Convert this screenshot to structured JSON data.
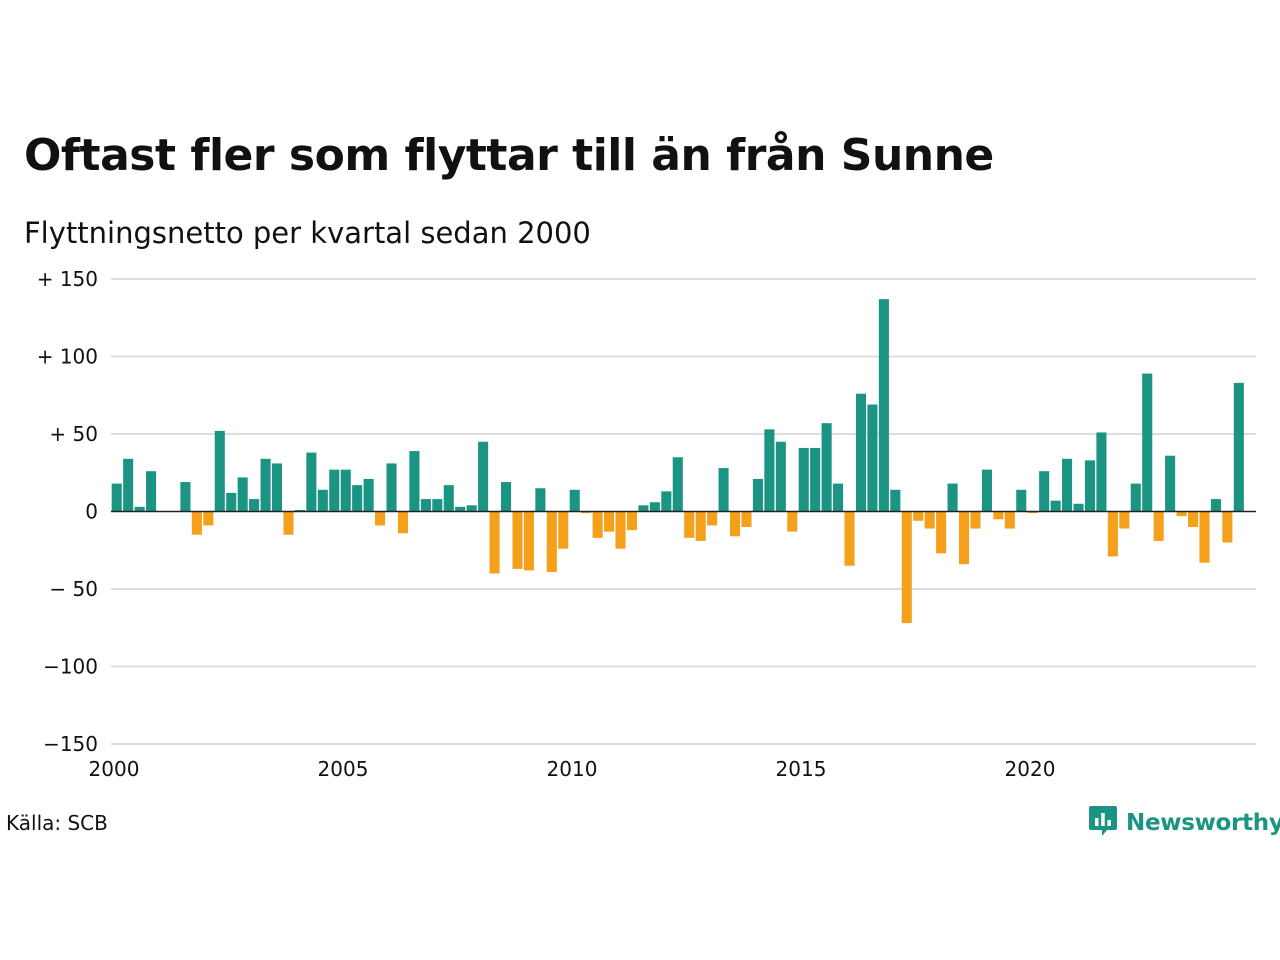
{
  "title": "Oftast fler som flyttar till än från Sunne",
  "subtitle": "Flyttningsnetto per kvartal sedan 2000",
  "source": "Källa: SCB",
  "brand": {
    "name": "Newsworthy",
    "color": "#1b9483",
    "icon": "newsworthy-logo-icon"
  },
  "colors": {
    "positive": "#1b9483",
    "negative": "#f5a01a",
    "grid": "#dddddd",
    "zero_line": "#222222"
  },
  "chart_data": {
    "type": "bar",
    "title": "Oftast fler som flyttar till än från Sunne",
    "subtitle": "Flyttningsnetto per kvartal sedan 2000",
    "xlabel": "",
    "ylabel": "",
    "ylim": [
      -150,
      150
    ],
    "y_ticks": [
      150,
      100,
      50,
      0,
      -50,
      -100,
      -150
    ],
    "y_tick_labels": [
      "+ 150",
      "+ 100",
      "+  50",
      "0",
      "− 50",
      "−100",
      "−150"
    ],
    "x_ticks": [
      2000,
      2005,
      2010,
      2015,
      2020
    ],
    "x_tick_labels": [
      "2000",
      "2005",
      "2010",
      "2015",
      "2020"
    ],
    "x_range": [
      2000,
      2025
    ],
    "grid": true,
    "first_period": "2000 Q1",
    "values": [
      18,
      34,
      3,
      26,
      0,
      0,
      19,
      -15,
      -9,
      52,
      12,
      22,
      8,
      34,
      31,
      -15,
      1,
      38,
      14,
      27,
      27,
      17,
      21,
      -9,
      31,
      -14,
      39,
      8,
      8,
      17,
      3,
      4,
      45,
      -40,
      19,
      -37,
      -38,
      15,
      -39,
      -24,
      14,
      -1,
      -17,
      -13,
      -24,
      -12,
      4,
      6,
      13,
      35,
      -17,
      -19,
      -9,
      28,
      -16,
      -10,
      21,
      53,
      45,
      -13,
      41,
      41,
      57,
      18,
      -35,
      76,
      69,
      137,
      14,
      -72,
      -6,
      -11,
      -27,
      18,
      -34,
      -11,
      27,
      -5,
      -11,
      14,
      -1,
      26,
      7,
      34,
      5,
      33,
      51,
      -29,
      -11,
      18,
      89,
      -19,
      36,
      -3,
      -10,
      -33,
      8,
      -20,
      83
    ]
  }
}
